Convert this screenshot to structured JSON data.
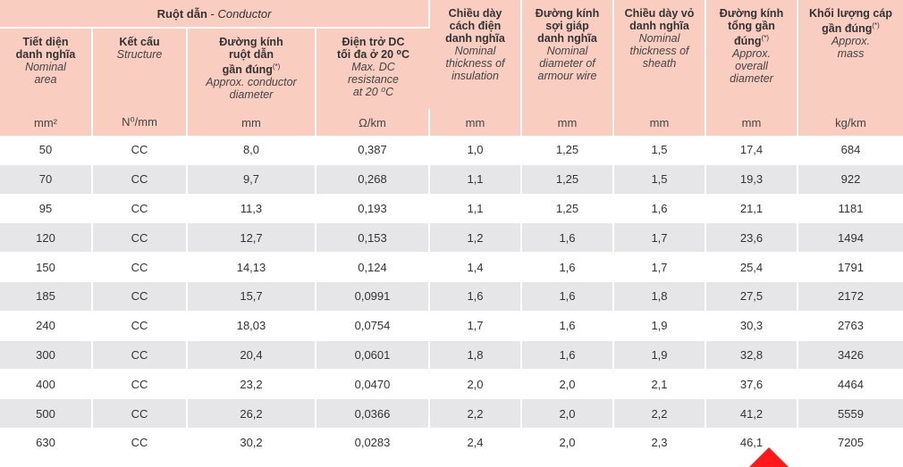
{
  "group_header": {
    "vn": "Ruột dẫn",
    "sep": " - ",
    "en": "Conductor"
  },
  "headers": [
    {
      "vn1": "Tiết diện",
      "vn2": "danh nghĩa",
      "en1": "Nominal",
      "en2": "area",
      "unit": "mm²"
    },
    {
      "vn1": "Kết cấu",
      "en1": "Structure",
      "unit": "N⁰/mm"
    },
    {
      "vn1": "Đường kính",
      "vn2": "ruột dẫn",
      "vn3": "gần đúng",
      "sup": "(*)",
      "en1": "Approx. conductor",
      "en2": "diameter",
      "unit": "mm"
    },
    {
      "vn1": "Điện trở DC",
      "vn2": "tối đa ở 20 ⁰C",
      "en1": "Max. DC",
      "en2": "resistance",
      "en3": "at 20 ⁰C",
      "unit": "Ω/km"
    },
    {
      "vn1": "Chiều dày",
      "vn2": "cách điện",
      "vn3": "danh nghĩa",
      "en1": "Nominal",
      "en2": "thickness of",
      "en3": "insulation",
      "unit": "mm"
    },
    {
      "vn1": "Đường kính",
      "vn2": "sợi giáp",
      "vn3": "danh nghĩa",
      "en1": "Nominal",
      "en2": "diameter of",
      "en3": "armour wire",
      "unit": "mm"
    },
    {
      "vn1": "Chiều dày vỏ",
      "vn2": "danh nghĩa",
      "en1": "Nominal",
      "en2": "thickness of",
      "en3": "sheath",
      "unit": "mm"
    },
    {
      "vn1": "Đường kính",
      "vn2": "tổng gần",
      "vn3": "đúng",
      "sup": "(*)",
      "en1": "Approx.",
      "en2": "overall",
      "en3": "diameter",
      "unit": "mm"
    },
    {
      "vn1": "Khối lượng cáp",
      "vn2": "gần đúng",
      "sup": "(*)",
      "en1": "Approx.",
      "en2": "mass",
      "unit": "kg/km"
    }
  ],
  "rows": [
    [
      "50",
      "CC",
      "8,0",
      "0,387",
      "1,0",
      "1,25",
      "1,5",
      "17,4",
      "684"
    ],
    [
      "70",
      "CC",
      "9,7",
      "0,268",
      "1,1",
      "1,25",
      "1,5",
      "19,3",
      "922"
    ],
    [
      "95",
      "CC",
      "11,3",
      "0,193",
      "1,1",
      "1,25",
      "1,6",
      "21,1",
      "1181"
    ],
    [
      "120",
      "CC",
      "12,7",
      "0,153",
      "1,2",
      "1,6",
      "1,7",
      "23,6",
      "1494"
    ],
    [
      "150",
      "CC",
      "14,13",
      "0,124",
      "1,4",
      "1,6",
      "1,7",
      "25,4",
      "1791"
    ],
    [
      "185",
      "CC",
      "15,7",
      "0,0991",
      "1,6",
      "1,6",
      "1,8",
      "27,5",
      "2172"
    ],
    [
      "240",
      "CC",
      "18,03",
      "0,0754",
      "1,7",
      "1,6",
      "1,9",
      "30,3",
      "2763"
    ],
    [
      "300",
      "CC",
      "20,4",
      "0,0601",
      "1,8",
      "1,6",
      "1,9",
      "32,8",
      "3426"
    ],
    [
      "400",
      "CC",
      "23,2",
      "0,0470",
      "2,0",
      "2,0",
      "2,1",
      "37,6",
      "4464"
    ],
    [
      "500",
      "CC",
      "26,2",
      "0,0366",
      "2,2",
      "2,0",
      "2,2",
      "41,2",
      "5559"
    ],
    [
      "630",
      "CC",
      "30,2",
      "0,0283",
      "2,4",
      "2,0",
      "2,3",
      "46,1",
      "7205"
    ]
  ],
  "colors": {
    "header_bg": "#f9cdbf",
    "alt_row_bg": "#e6e6e8",
    "watermark": "#ff0000"
  }
}
